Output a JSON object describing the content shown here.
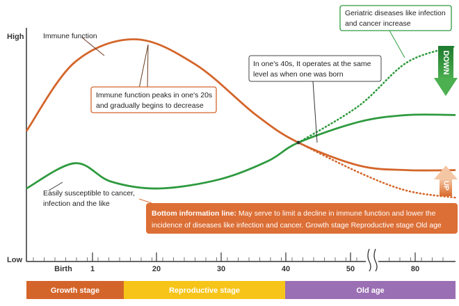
{
  "chart_data": {
    "type": "line",
    "title": "",
    "xlabel": "",
    "ylabel": "",
    "y_axis": {
      "high_label": "High",
      "low_label": "Low"
    },
    "x_ticks": [
      "Birth",
      "1",
      "20",
      "30",
      "40",
      "50",
      "80"
    ],
    "axis_break_after": "50",
    "series": [
      {
        "name": "Immune function",
        "color": "#d4652a",
        "points": [
          [
            0,
            55
          ],
          [
            8,
            85
          ],
          [
            18,
            95
          ],
          [
            28,
            84
          ],
          [
            38,
            62
          ],
          [
            45,
            50
          ],
          [
            55,
            40
          ],
          [
            63,
            38
          ],
          [
            71,
            38
          ]
        ]
      },
      {
        "name": "",
        "color": "#2e9a3e",
        "points": [
          [
            0,
            30
          ],
          [
            8,
            41
          ],
          [
            14,
            33
          ],
          [
            22,
            30
          ],
          [
            32,
            34
          ],
          [
            40,
            42
          ],
          [
            45,
            50
          ],
          [
            55,
            59
          ],
          [
            63,
            62
          ],
          [
            71,
            62
          ]
        ]
      },
      {
        "name": "",
        "style": "dotted",
        "color": "#2e9a3e",
        "points": [
          [
            45,
            50
          ],
          [
            55,
            66
          ],
          [
            63,
            85
          ],
          [
            71,
            92
          ]
        ]
      },
      {
        "name": "",
        "style": "dotted",
        "color": "#d4652a",
        "points": [
          [
            45,
            50
          ],
          [
            55,
            37
          ],
          [
            63,
            29
          ],
          [
            71,
            26
          ]
        ]
      }
    ],
    "annotations": [
      {
        "id": "immune_label",
        "text": "Immune function"
      },
      {
        "id": "peak",
        "lines": [
          "Immune function peaks in one's 20s",
          "and gradually begins to decrease"
        ]
      },
      {
        "id": "forties",
        "lines": [
          "In one's 40s, It operates at the same",
          "level as when one was born"
        ]
      },
      {
        "id": "geriatric",
        "lines": [
          "Geriatric diseases like infection",
          "and cancer increase"
        ]
      },
      {
        "id": "susceptible",
        "lines": [
          "Easily susceptible to cancer,",
          "infection and the like"
        ]
      }
    ],
    "info_box": {
      "bold": "Bottom information line:",
      "line1": " May serve to limit a decline in immune function and lower the",
      "line2": "incidence of diseases like infection and cancer.  Growth stage  Reproductive stage  Old age"
    },
    "arrows": {
      "down": "DOWN",
      "up": "UP"
    },
    "stages": [
      {
        "label": "Growth stage",
        "color": "#d4652a"
      },
      {
        "label": "Reproductive stage",
        "color": "#f7c519"
      },
      {
        "label": "Old age",
        "color": "#9b6fb3"
      }
    ],
    "colors": {
      "orange": "#d4652a",
      "green": "#2e9a3e",
      "info_box": "#dc6f36",
      "up_arrow": "#e89a6a"
    }
  }
}
